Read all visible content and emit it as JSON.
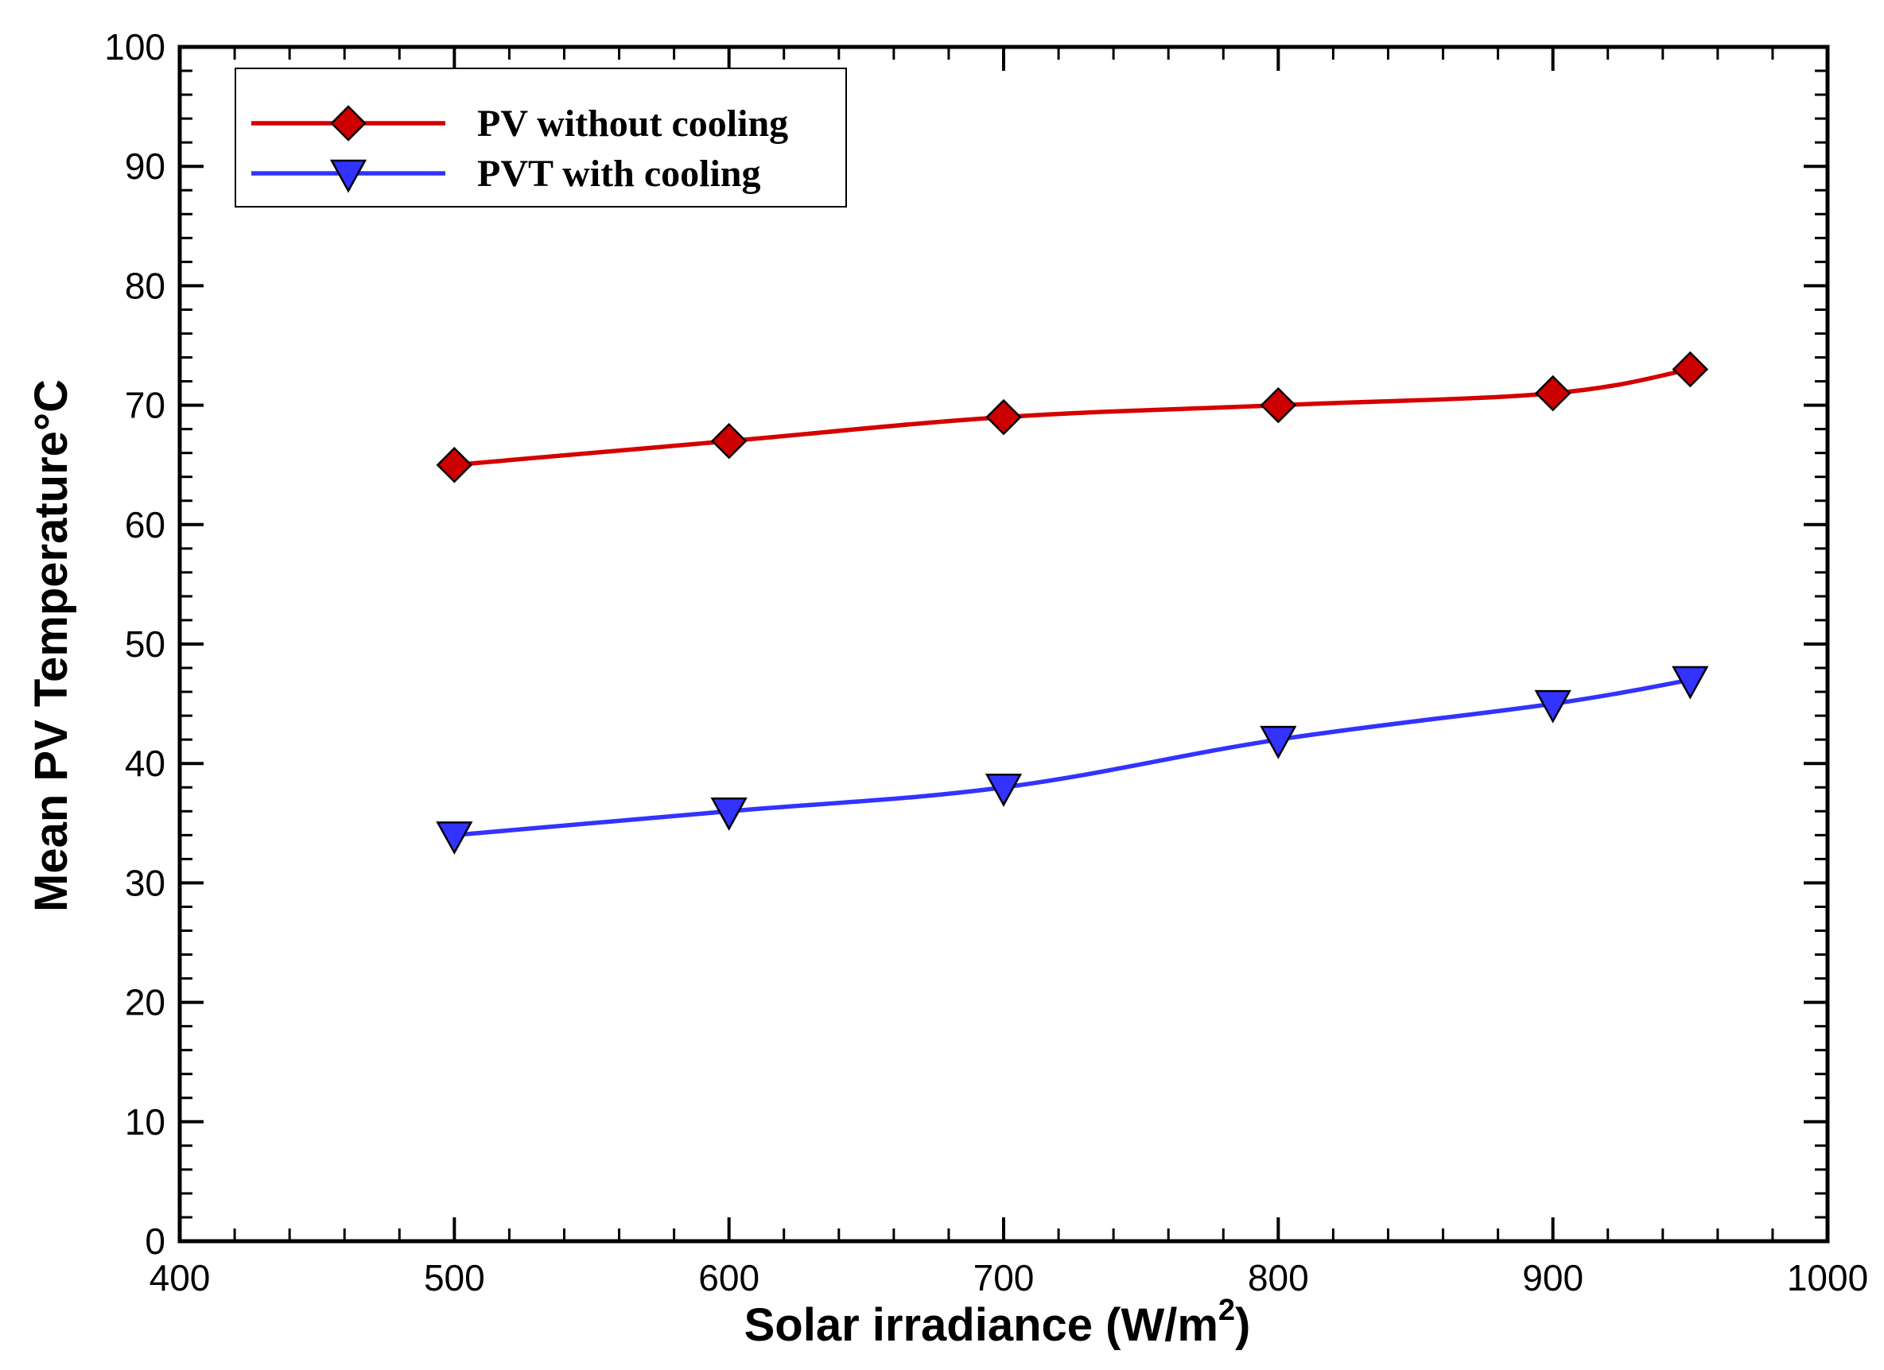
{
  "chart_data": {
    "type": "line",
    "title": "",
    "xlabel": "Solar irradiance (W/m",
    "xlabel_sup": "2",
    "xlabel_close": ")",
    "ylabel": "Mean PV Temperature°C",
    "xlim": [
      400,
      1000
    ],
    "ylim": [
      0,
      100
    ],
    "x_ticks": [
      400,
      500,
      600,
      700,
      800,
      900,
      1000
    ],
    "y_ticks": [
      0,
      10,
      20,
      30,
      40,
      50,
      60,
      70,
      80,
      90,
      100
    ],
    "x_minor_step": 20,
    "y_minor_step": 2,
    "grid": false,
    "legend_position": "top-left",
    "series": [
      {
        "name": "PV without cooling",
        "color": "#d40000",
        "marker_fill": "#cc0000",
        "marker": "diamond",
        "x": [
          500,
          600,
          700,
          800,
          900,
          950
        ],
        "values": [
          65,
          67,
          69,
          70,
          71,
          73
        ]
      },
      {
        "name": "PVT with cooling",
        "color": "#3333ff",
        "marker_fill": "#3333ff",
        "marker": "triangle-down",
        "x": [
          500,
          600,
          700,
          800,
          900,
          950
        ],
        "values": [
          34,
          36,
          38,
          42,
          45,
          47
        ]
      }
    ]
  }
}
